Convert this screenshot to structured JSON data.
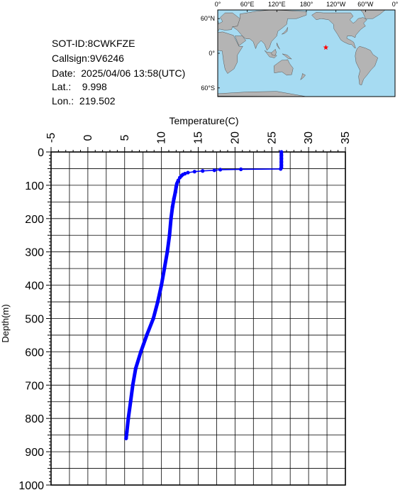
{
  "info": {
    "sot_id": "SOT-ID:8CWKFZE",
    "callsign": "Callsign:9V6246",
    "date": "Date:  2025/04/06 13:58(UTC)",
    "lat": "Lat.:    9.998",
    "lon": "Lon.:  219.502"
  },
  "map": {
    "lon_labels": [
      "0°",
      "60°E",
      "120°E",
      "180°",
      "120°W",
      "60°W",
      "0°"
    ],
    "lat_labels": [
      "60°N",
      "0°",
      "60°S"
    ],
    "marker": {
      "lat": 9.998,
      "lon": 219.502,
      "color": "#ff0000"
    },
    "ocean_color": "#a6dbf2",
    "land_color": "#b4b4b4"
  },
  "chart_data": {
    "type": "line",
    "xlabel": "Temperature(C)",
    "ylabel": "Depth(m)",
    "xlim": [
      -5,
      35
    ],
    "ylim": [
      0,
      1000
    ],
    "y_inverted": true,
    "x_ticks": [
      -5,
      0,
      5,
      10,
      15,
      20,
      25,
      30,
      35
    ],
    "y_ticks": [
      0,
      100,
      200,
      300,
      400,
      500,
      600,
      700,
      800,
      900,
      1000
    ],
    "grid": true,
    "series": [
      {
        "color": "#0000ff",
        "points": [
          [
            26.3,
            0
          ],
          [
            26.3,
            10
          ],
          [
            26.3,
            20
          ],
          [
            26.3,
            30
          ],
          [
            26.3,
            40
          ],
          [
            26.3,
            47
          ],
          [
            26.2,
            51
          ],
          [
            20.8,
            52
          ],
          [
            18.0,
            53
          ],
          [
            17.2,
            55
          ],
          [
            15.6,
            57
          ],
          [
            14.5,
            59
          ],
          [
            13.6,
            62
          ],
          [
            13.2,
            65
          ],
          [
            12.9,
            68
          ],
          [
            12.7,
            72
          ],
          [
            12.5,
            77
          ],
          [
            12.3,
            85
          ],
          [
            12.1,
            95
          ],
          [
            12.0,
            105
          ],
          [
            11.9,
            120
          ],
          [
            11.7,
            140
          ],
          [
            11.5,
            165
          ],
          [
            11.3,
            200
          ],
          [
            11.1,
            250
          ],
          [
            10.8,
            300
          ],
          [
            10.4,
            350
          ],
          [
            10.0,
            400
          ],
          [
            9.5,
            450
          ],
          [
            8.9,
            500
          ],
          [
            8.0,
            550
          ],
          [
            7.2,
            600
          ],
          [
            6.5,
            650
          ],
          [
            6.1,
            700
          ],
          [
            5.8,
            750
          ],
          [
            5.5,
            800
          ],
          [
            5.3,
            840
          ],
          [
            5.2,
            860
          ]
        ]
      }
    ]
  }
}
